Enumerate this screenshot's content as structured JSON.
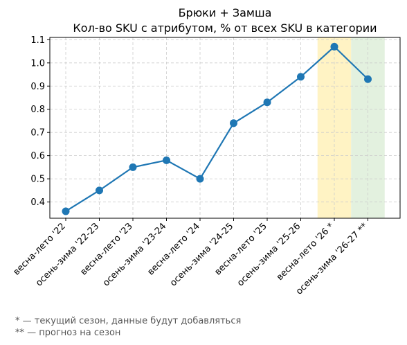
{
  "chart_data": {
    "type": "line",
    "title": "Брюки + Замша",
    "subtitle": "Кол-во SKU с атрибутом, % от всех SKU в категории",
    "xlabel": "",
    "ylabel": "",
    "categories": [
      "весна-лето '22",
      "осень-зима '22-23",
      "весна-лето '23",
      "осень-зима '23-24",
      "весна-лето '24",
      "осень-зима '24-25",
      "весна-лето '25",
      "осень-зима '25-26",
      "весна-лето '26 *",
      "осень-зима '26-27 **"
    ],
    "series": [
      {
        "values": [
          0.36,
          0.45,
          0.55,
          0.58,
          0.5,
          0.74,
          0.83,
          0.94,
          1.07,
          0.93
        ]
      }
    ],
    "ylim": [
      0.33,
      1.11
    ],
    "yticks": [
      "0.4",
      "0.5",
      "0.6",
      "0.7",
      "0.8",
      "0.9",
      "1.0",
      "1.1"
    ],
    "grid": true,
    "line_color": "#1f77b4",
    "highlights": [
      {
        "category": "весна-лето '26 *",
        "color": "#fff3c4"
      },
      {
        "category": "осень-зима '26-27 **",
        "color": "#e3f1df"
      }
    ]
  },
  "footnotes": [
    "* — текущий сезон, данные будут добавляться",
    "** — прогноз на сезон"
  ]
}
